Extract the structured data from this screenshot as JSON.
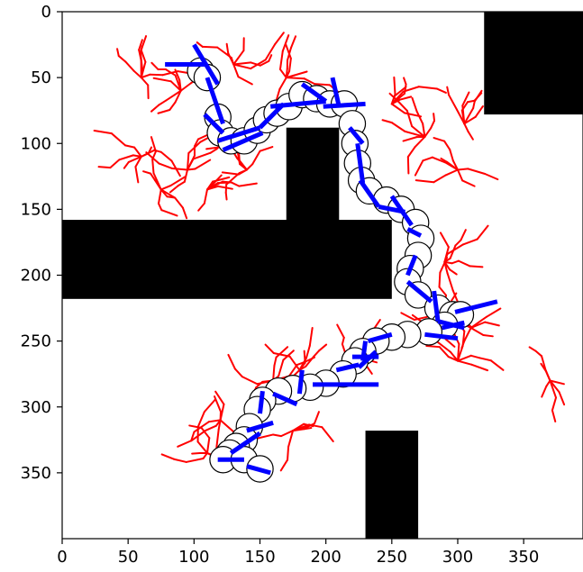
{
  "chart_data": {
    "type": "scatter",
    "title": "",
    "xlabel": "",
    "ylabel": "",
    "xlim": [
      0,
      395
    ],
    "ylim": [
      400,
      0
    ],
    "y_axis_inverted": true,
    "grid": false,
    "legend": "none",
    "x_ticks": [
      "0",
      "50",
      "100",
      "150",
      "200",
      "250",
      "300",
      "350"
    ],
    "y_ticks": [
      "0",
      "50",
      "100",
      "150",
      "200",
      "250",
      "300",
      "350"
    ],
    "colors": {
      "obstacle": "#000000",
      "tree": "#ff0000",
      "path": "#0000ff",
      "robot_circle_edge": "#000000",
      "robot_circle_fill": "#ffffff"
    },
    "obstacles": [
      {
        "x0": 320,
        "x1": 395,
        "y0": 0,
        "y1": 78
      },
      {
        "x0": 170,
        "x1": 210,
        "y0": 88,
        "y1": 160
      },
      {
        "x0": 0,
        "x1": 250,
        "y0": 158,
        "y1": 218
      },
      {
        "x0": 230,
        "x1": 270,
        "y0": 318,
        "y1": 400
      }
    ],
    "robot_radius": 10,
    "path_points": [
      [
        105,
        45
      ],
      [
        110,
        50
      ],
      [
        118,
        80
      ],
      [
        120,
        92
      ],
      [
        128,
        98
      ],
      [
        138,
        98
      ],
      [
        148,
        90
      ],
      [
        155,
        82
      ],
      [
        163,
        77
      ],
      [
        172,
        72
      ],
      [
        182,
        63
      ],
      [
        193,
        66
      ],
      [
        203,
        70
      ],
      [
        214,
        70
      ],
      [
        220,
        85
      ],
      [
        222,
        100
      ],
      [
        224,
        115
      ],
      [
        227,
        128
      ],
      [
        233,
        136
      ],
      [
        246,
        143
      ],
      [
        257,
        150
      ],
      [
        268,
        160
      ],
      [
        272,
        172
      ],
      [
        270,
        185
      ],
      [
        264,
        195
      ],
      [
        262,
        205
      ],
      [
        270,
        215
      ],
      [
        285,
        225
      ],
      [
        296,
        230
      ],
      [
        302,
        230
      ],
      [
        290,
        238
      ],
      [
        278,
        243
      ],
      [
        262,
        245
      ],
      [
        250,
        247
      ],
      [
        238,
        250
      ],
      [
        228,
        258
      ],
      [
        222,
        265
      ],
      [
        213,
        275
      ],
      [
        200,
        282
      ],
      [
        188,
        285
      ],
      [
        175,
        286
      ],
      [
        164,
        288
      ],
      [
        152,
        295
      ],
      [
        148,
        302
      ],
      [
        142,
        315
      ],
      [
        138,
        325
      ],
      [
        132,
        330
      ],
      [
        127,
        335
      ],
      [
        122,
        340
      ],
      [
        138,
        340
      ],
      [
        150,
        347
      ]
    ],
    "path_segments": [
      [
        [
          78,
          40
        ],
        [
          108,
          40
        ]
      ],
      [
        [
          100,
          25
        ],
        [
          118,
          55
        ]
      ],
      [
        [
          110,
          50
        ],
        [
          122,
          85
        ]
      ],
      [
        [
          108,
          78
        ],
        [
          122,
          92
        ]
      ],
      [
        [
          118,
          98
        ],
        [
          150,
          88
        ]
      ],
      [
        [
          122,
          105
        ],
        [
          152,
          92
        ]
      ],
      [
        [
          150,
          88
        ],
        [
          168,
          70
        ]
      ],
      [
        [
          158,
          72
        ],
        [
          200,
          68
        ]
      ],
      [
        [
          182,
          55
        ],
        [
          200,
          68
        ]
      ],
      [
        [
          198,
          72
        ],
        [
          230,
          70
        ]
      ],
      [
        [
          205,
          50
        ],
        [
          210,
          72
        ]
      ],
      [
        [
          218,
          88
        ],
        [
          228,
          100
        ]
      ],
      [
        [
          224,
          100
        ],
        [
          228,
          130
        ]
      ],
      [
        [
          226,
          128
        ],
        [
          240,
          148
        ]
      ],
      [
        [
          240,
          148
        ],
        [
          260,
          152
        ]
      ],
      [
        [
          250,
          140
        ],
        [
          265,
          162
        ]
      ],
      [
        [
          262,
          165
        ],
        [
          272,
          170
        ]
      ],
      [
        [
          268,
          185
        ],
        [
          262,
          200
        ]
      ],
      [
        [
          262,
          205
        ],
        [
          280,
          220
        ]
      ],
      [
        [
          282,
          212
        ],
        [
          285,
          235
        ]
      ],
      [
        [
          285,
          235
        ],
        [
          305,
          240
        ]
      ],
      [
        [
          298,
          228
        ],
        [
          330,
          220
        ]
      ],
      [
        [
          288,
          240
        ],
        [
          305,
          236
        ]
      ],
      [
        [
          275,
          245
        ],
        [
          300,
          248
        ]
      ],
      [
        [
          250,
          245
        ],
        [
          232,
          250
        ]
      ],
      [
        [
          230,
          250
        ],
        [
          228,
          265
        ]
      ],
      [
        [
          220,
          262
        ],
        [
          240,
          262
        ]
      ],
      [
        [
          225,
          270
        ],
        [
          238,
          258
        ]
      ],
      [
        [
          208,
          272
        ],
        [
          225,
          268
        ]
      ],
      [
        [
          190,
          283
        ],
        [
          240,
          283
        ]
      ],
      [
        [
          180,
          290
        ],
        [
          182,
          272
        ]
      ],
      [
        [
          160,
          290
        ],
        [
          178,
          298
        ]
      ],
      [
        [
          150,
          305
        ],
        [
          152,
          288
        ]
      ],
      [
        [
          140,
          318
        ],
        [
          160,
          312
        ]
      ],
      [
        [
          128,
          335
        ],
        [
          150,
          320
        ]
      ],
      [
        [
          118,
          340
        ],
        [
          138,
          340
        ]
      ],
      [
        [
          140,
          345
        ],
        [
          158,
          350
        ]
      ]
    ]
  }
}
